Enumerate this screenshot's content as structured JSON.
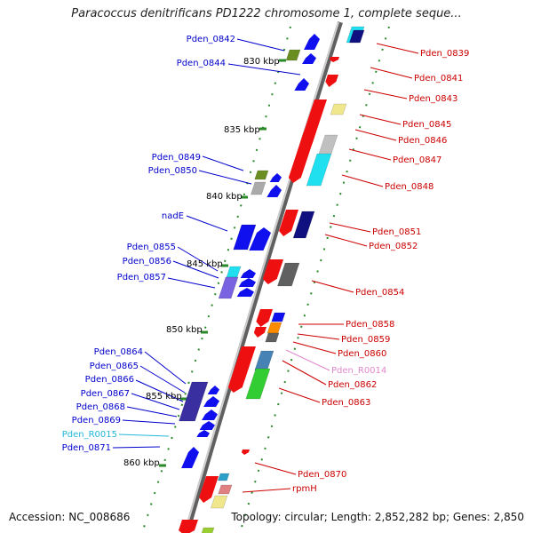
{
  "title": "Paracoccus denitrificans PD1222 chromosome 1, complete seque...",
  "footer": {
    "accession": "Accession: NC_008686",
    "summary": "Topology: circular; Length: 2,852,282 bp; Genes: 2,850"
  },
  "colors": {
    "cds_forward": "#0000ee",
    "cds_reverse": "#ee0000",
    "label_forward": "#0000cc",
    "label_reverse": "#cc0000",
    "rna": "#00b0d0",
    "pseudo_pink": "#e088cc",
    "kbp_ticks": "#228b22",
    "backbone": "#808080"
  },
  "kbp_marks": [
    "830 kbp",
    "835 kbp",
    "840 kbp",
    "845 kbp",
    "850 kbp",
    "855 kbp",
    "860 kbp"
  ],
  "left_labels": [
    "Pden_0842",
    "Pden_0844",
    "Pden_0849",
    "Pden_0850",
    "nadE",
    "Pden_0855",
    "Pden_0856",
    "Pden_0857",
    "Pden_0864",
    "Pden_0865",
    "Pden_0866",
    "Pden_0867",
    "Pden_0868",
    "Pden_0869",
    "Pden_R0015",
    "Pden_0871"
  ],
  "right_labels": [
    "Pden_0839",
    "Pden_0841",
    "Pden_0843",
    "Pden_0845",
    "Pden_0846",
    "Pden_0847",
    "Pden_0848",
    "Pden_0851",
    "Pden_0852",
    "Pden_0854",
    "Pden_0858",
    "Pden_0859",
    "Pden_0860",
    "Pden_R0014",
    "Pden_0862",
    "Pden_0863",
    "Pden_0870",
    "rpmH"
  ]
}
